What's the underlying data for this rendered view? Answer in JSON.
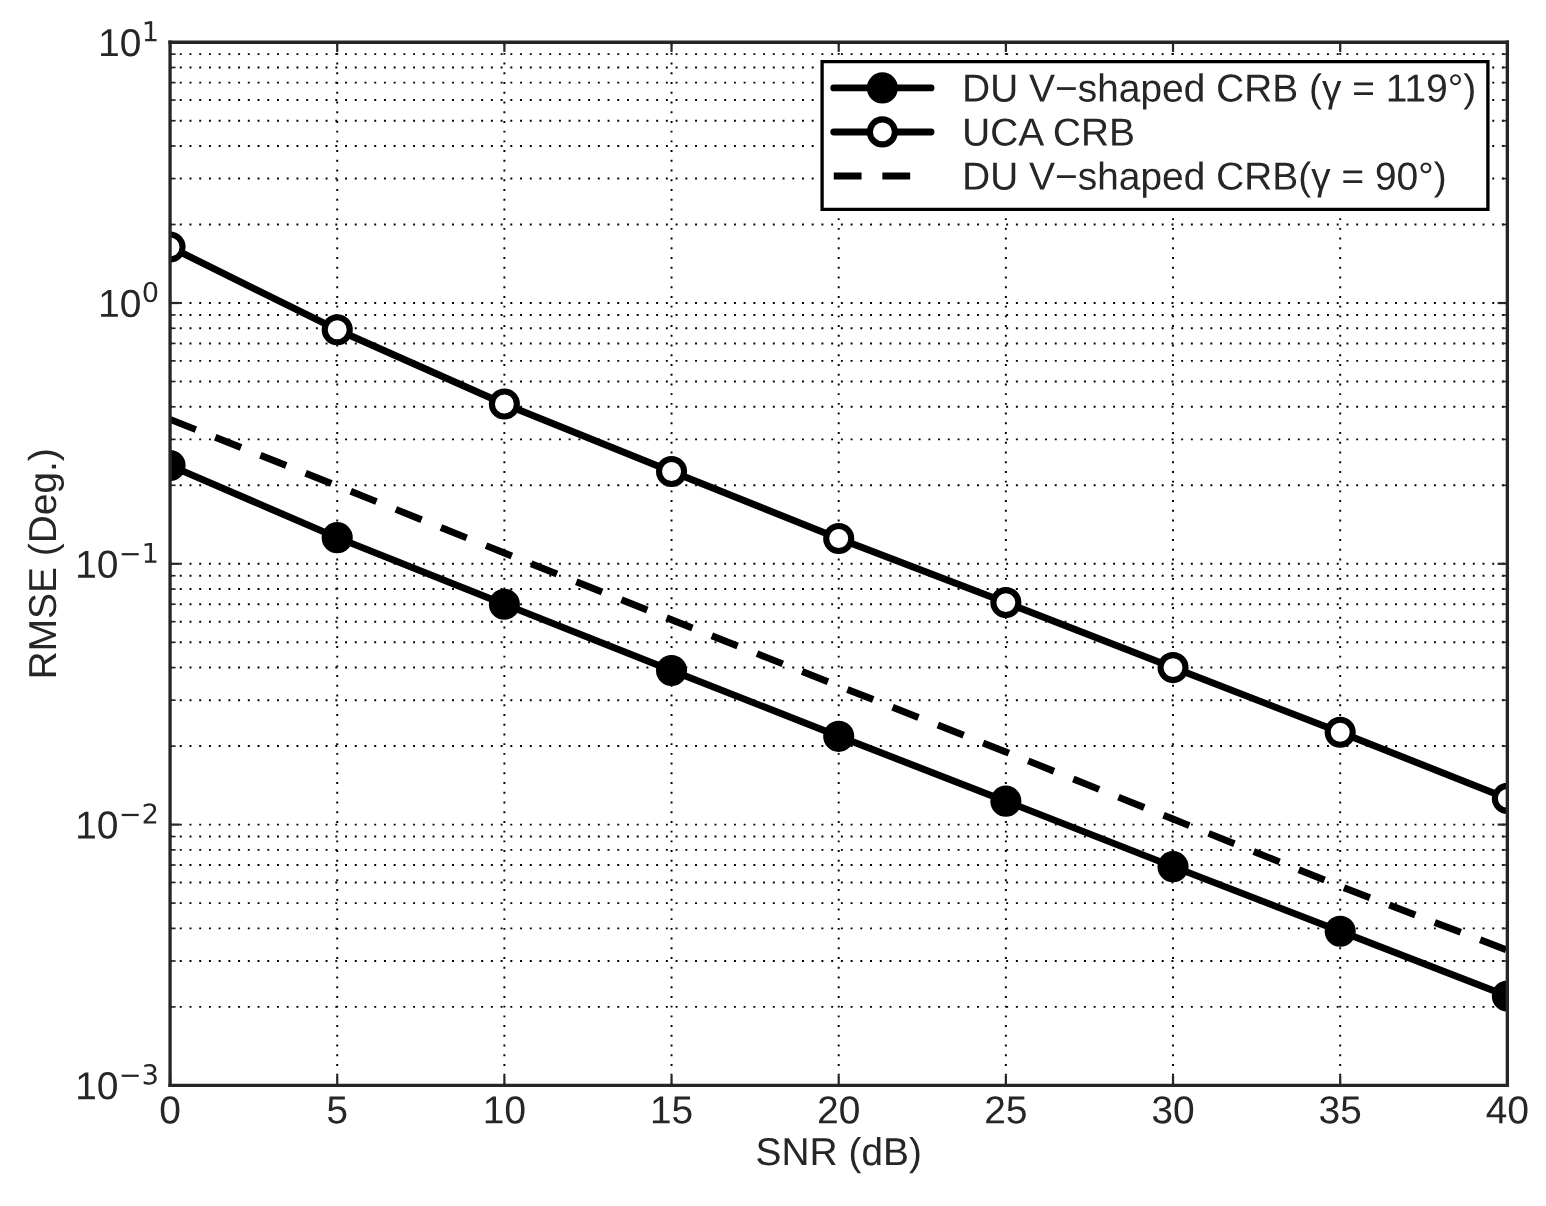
{
  "chart_data": {
    "type": "line",
    "xlabel": "SNR (dB)",
    "ylabel": "RMSE (Deg.)",
    "x": [
      0,
      5,
      10,
      15,
      20,
      25,
      30,
      35,
      40
    ],
    "series": [
      {
        "name": "DU V−shaped CRB (γ = 119°)",
        "color": "#000000",
        "marker": "circle",
        "line_style": "solid",
        "values": [
          0.238,
          0.126,
          0.07,
          0.039,
          0.0218,
          0.0123,
          0.0069,
          0.0039,
          0.0022
        ]
      },
      {
        "name": "UCA CRB",
        "color": "#000000",
        "marker": "open circle",
        "line_style": "solid",
        "values": [
          1.64,
          0.79,
          0.41,
          0.226,
          0.125,
          0.071,
          0.04,
          0.0226,
          0.0126
        ]
      },
      {
        "name": "DU V−shaped CRB(γ = 90°)",
        "color": "#000000",
        "marker": "none",
        "line_style": "dashed",
        "values": [
          0.358,
          0.199,
          0.11,
          0.061,
          0.034,
          0.019,
          0.0105,
          0.0058,
          0.0033
        ]
      }
    ],
    "log": "y",
    "xlim": [
      0,
      40
    ],
    "xticks": [
      0,
      5,
      10,
      15,
      20,
      25,
      30,
      35,
      40
    ],
    "ylim": [
      0.001,
      10
    ],
    "yticks": [
      {
        "value": 0.001,
        "label": "10$^{−3}$"
      },
      {
        "value": 0.01,
        "label": "10$^{−2}$"
      },
      {
        "value": 0.1,
        "label": "10$^{−1}$"
      },
      {
        "value": 1,
        "label": "10$^{0}$"
      },
      {
        "value": 10,
        "label": "10$^{1}$"
      }
    ],
    "grid": true,
    "legend": "top right"
  }
}
